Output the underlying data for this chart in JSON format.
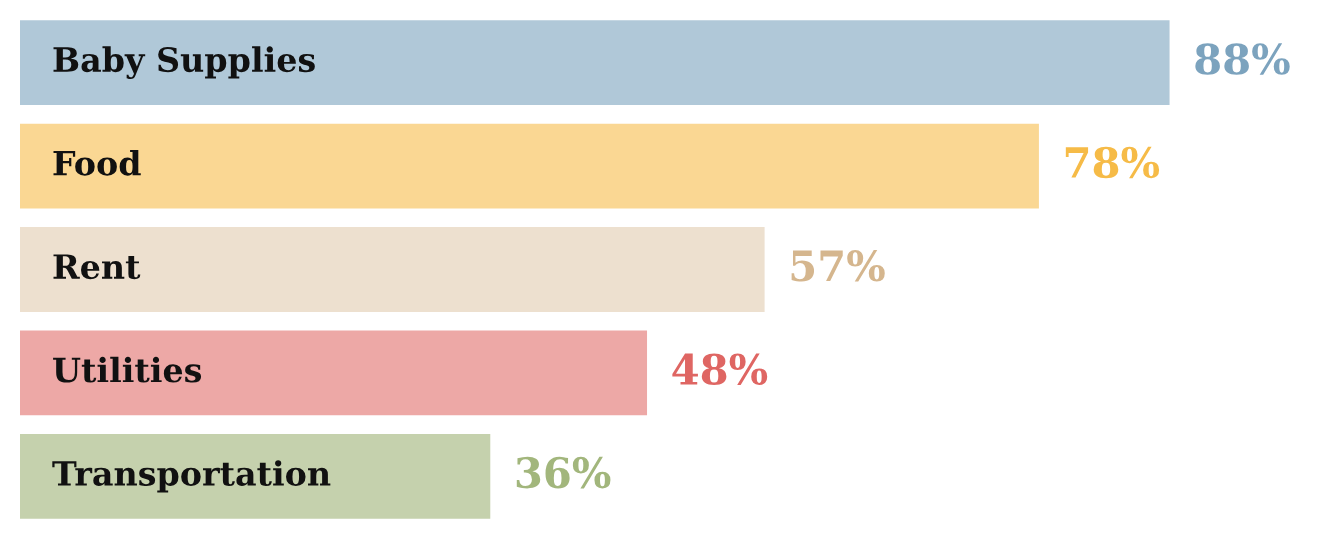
{
  "chart_data": {
    "type": "bar",
    "orientation": "horizontal",
    "categories": [
      "Baby Supplies",
      "Food",
      "Rent",
      "Utilities",
      "Transportation"
    ],
    "values": [
      88,
      78,
      57,
      48,
      36
    ],
    "value_labels": [
      "88%",
      "78%",
      "57%",
      "48%",
      "36%"
    ],
    "colors": [
      "#b0c8d8",
      "#fad793",
      "#ede0cf",
      "#eda8a6",
      "#c5d1ad"
    ],
    "tick_labels": "y"
  }
}
